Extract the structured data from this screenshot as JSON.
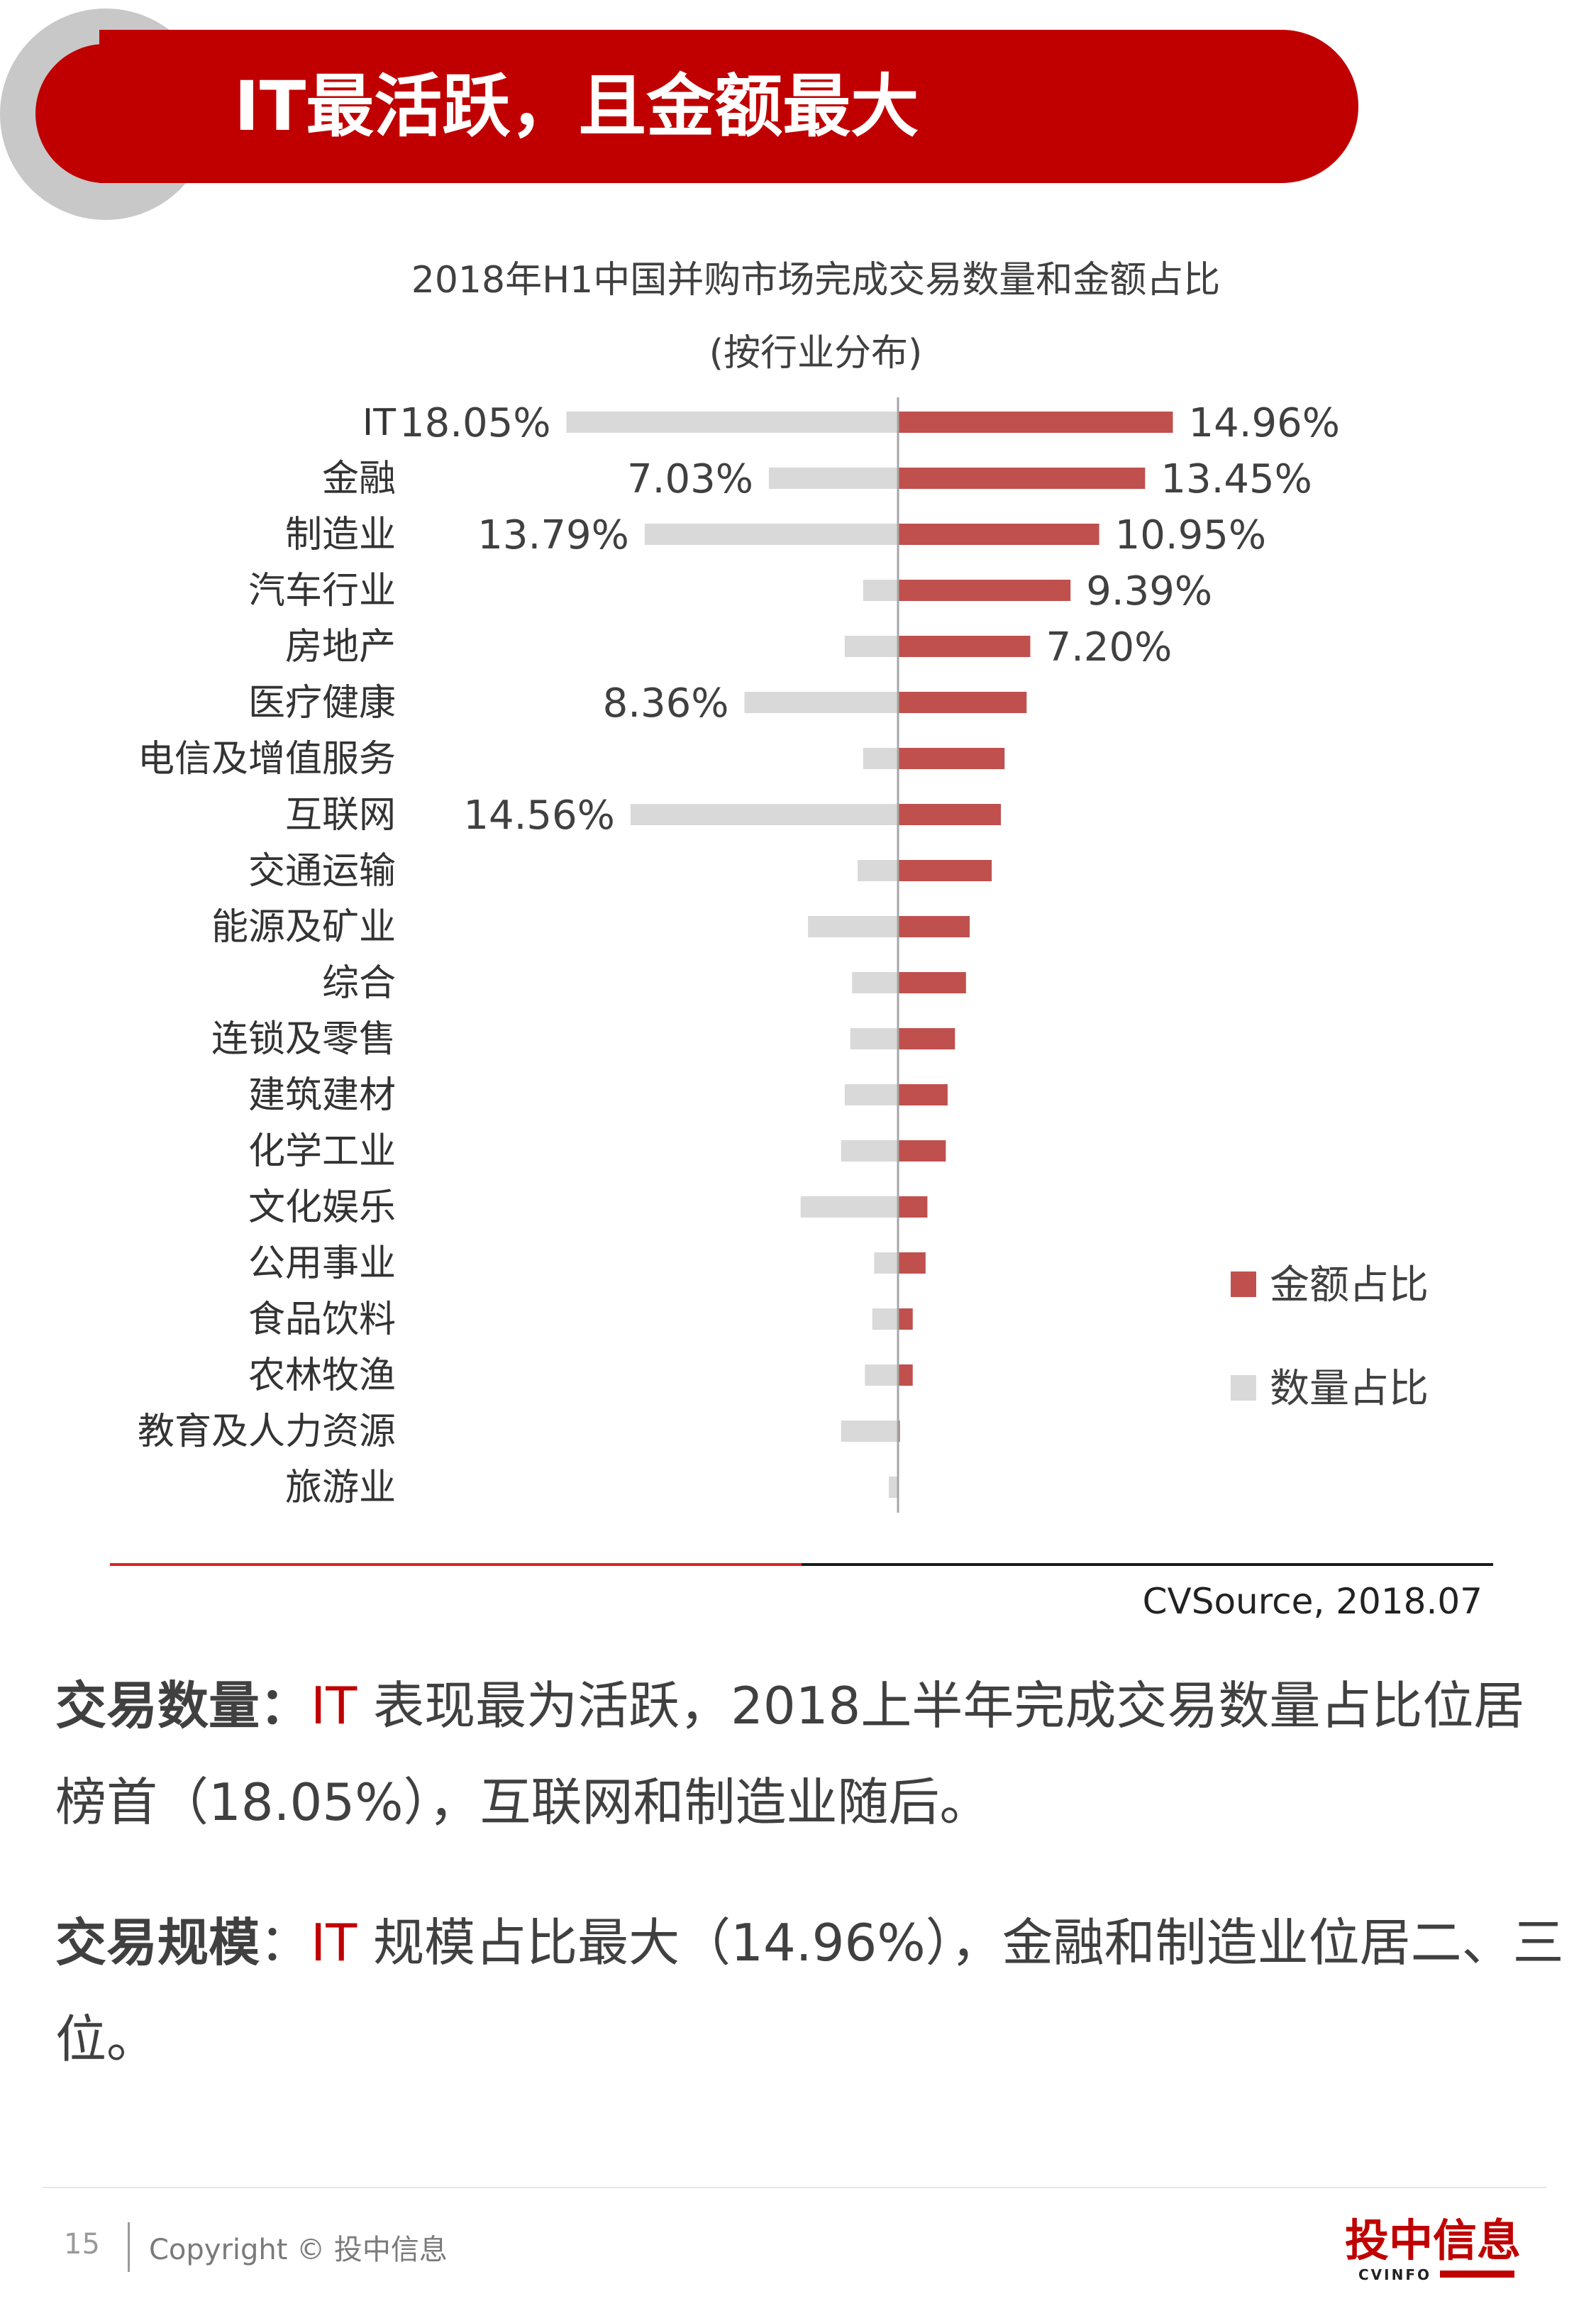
{
  "header": {
    "title": "IT最活跃，且金额最大"
  },
  "chart_data": {
    "type": "bar",
    "title": "2018年H1中国并购市场完成交易数量和金额占比",
    "subtitle": "(按行业分布)",
    "categories": [
      "IT",
      "金融",
      "制造业",
      "汽车行业",
      "房地产",
      "医疗健康",
      "电信及增值服务",
      "互联网",
      "交通运输",
      "能源及矿业",
      "综合",
      "连锁及零售",
      "建筑建材",
      "化学工业",
      "文化娱乐",
      "公用事业",
      "食品饮料",
      "农林牧渔",
      "教育及人力资源",
      "旅游业"
    ],
    "series": [
      {
        "name": "金额占比",
        "color": "#c0504d",
        "direction": "right",
        "values": [
          14.96,
          13.45,
          10.95,
          9.39,
          7.2,
          7.0,
          5.8,
          5.6,
          5.1,
          3.9,
          3.7,
          3.1,
          2.7,
          2.6,
          1.6,
          1.5,
          0.8,
          0.8,
          0.1,
          0.0
        ],
        "data_labels": [
          "14.96%",
          "13.45%",
          "10.95%",
          "9.39%",
          "7.20%",
          "",
          "",
          "",
          "",
          "",
          "",
          "",
          "",
          "",
          "",
          "",
          "",
          "",
          "",
          ""
        ]
      },
      {
        "name": "数量占比",
        "color": "#d9d9d9",
        "direction": "left",
        "values": [
          18.05,
          7.03,
          13.79,
          1.9,
          2.9,
          8.36,
          1.9,
          14.56,
          2.2,
          4.9,
          2.5,
          2.6,
          2.9,
          3.1,
          5.3,
          1.3,
          1.4,
          1.8,
          3.1,
          0.5
        ],
        "data_labels": [
          "18.05%",
          "7.03%",
          "13.79%",
          "",
          "",
          "8.36%",
          "",
          "14.56%",
          "",
          "",
          "",
          "",
          "",
          "",
          "",
          "",
          "",
          "",
          "",
          ""
        ]
      }
    ],
    "xlabel": "",
    "ylabel": "",
    "xlim": [
      -20,
      20
    ],
    "legend_position": "right",
    "source": "CVSource, 2018.07"
  },
  "paragraphs": {
    "p1": {
      "label": "交易数量：",
      "accent": "IT",
      "text": " 表现最为活跃，2018上半年完成交易数量占比位居榜首（18.05%），互联网和制造业随后。"
    },
    "p2": {
      "label": "交易规模",
      "colon": "：",
      "accent": "IT",
      "text": " 规模占比最大（14.96%），金融和制造业位居二、三位。"
    }
  },
  "footer": {
    "page_number": "15",
    "copyright": "Copyright © 投中信息",
    "logo_cn": "投中信息",
    "logo_en": "CVINFO"
  }
}
